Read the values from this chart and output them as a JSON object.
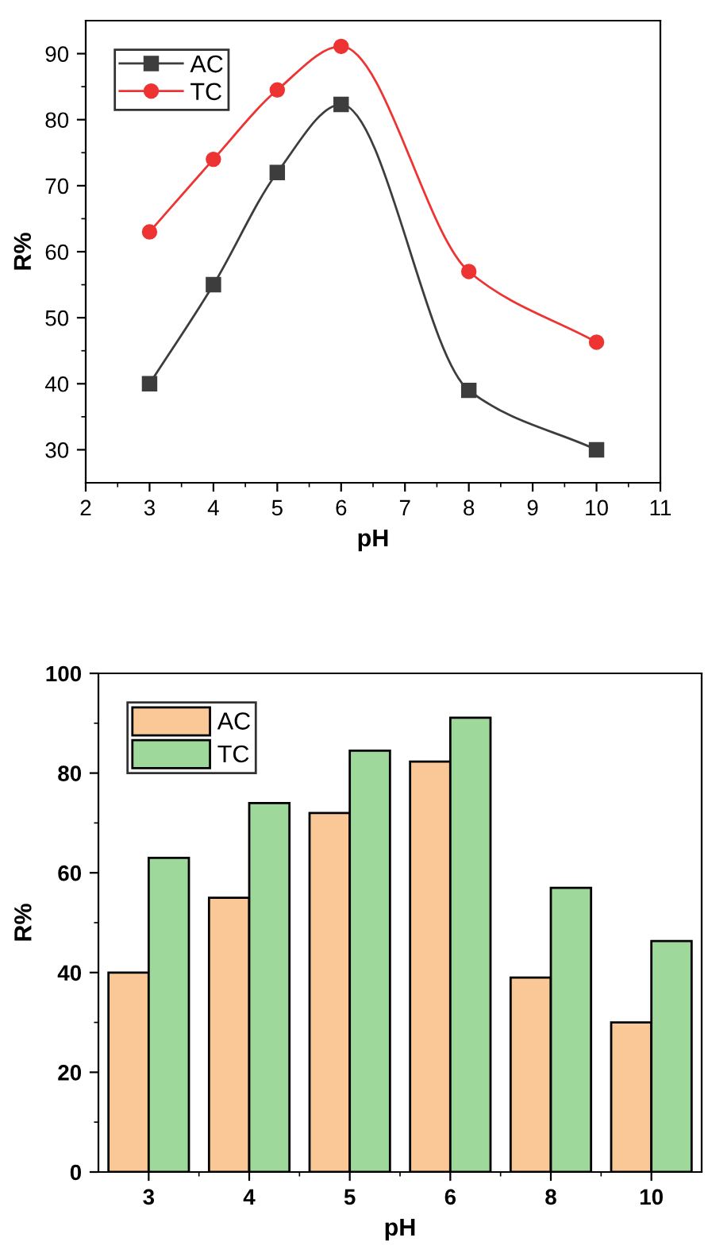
{
  "chart_data": [
    {
      "type": "line",
      "xlabel": "pH",
      "ylabel": "R%",
      "x": [
        3,
        4,
        5,
        6,
        8,
        10
      ],
      "xlim": [
        2,
        11
      ],
      "xticks": [
        2,
        3,
        4,
        5,
        6,
        7,
        8,
        9,
        10,
        11
      ],
      "ylim": [
        25,
        95
      ],
      "yticks": [
        30,
        40,
        50,
        60,
        70,
        80,
        90
      ],
      "legend": "top left",
      "grid": false,
      "series": [
        {
          "name": "AC",
          "color": "#3d3d3d",
          "marker": "square",
          "values": [
            40,
            55,
            72,
            82.3,
            39,
            30
          ]
        },
        {
          "name": "TC",
          "color": "#ee3333",
          "marker": "circle",
          "values": [
            63,
            74,
            84.5,
            91.1,
            57,
            46.3
          ]
        }
      ]
    },
    {
      "type": "bar",
      "xlabel": "pH",
      "ylabel": "R%",
      "categories": [
        "3",
        "4",
        "5",
        "6",
        "8",
        "10"
      ],
      "ylim": [
        0,
        100
      ],
      "yticks": [
        0,
        20,
        40,
        60,
        80,
        100
      ],
      "legend": "top left",
      "grid": false,
      "series": [
        {
          "name": "AC",
          "color": "#f9c896",
          "values": [
            40,
            55,
            72,
            82.3,
            39,
            30
          ]
        },
        {
          "name": "TC",
          "color": "#9ed89b",
          "values": [
            63,
            74,
            84.5,
            91.1,
            57,
            46.3
          ]
        }
      ]
    }
  ]
}
